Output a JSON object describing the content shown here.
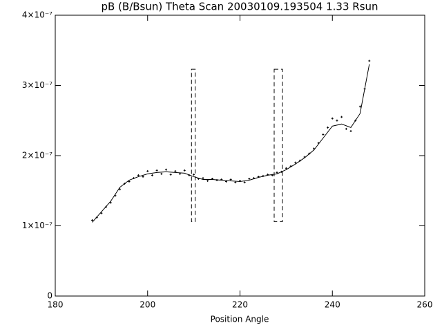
{
  "chart_data": {
    "type": "scatter",
    "title": "pB (B/Bsun) Theta Scan 20030109.193504 1.33 Rsun",
    "x_label": "Position Angle",
    "xlim": [
      180,
      260
    ],
    "xticks": [
      180,
      200,
      220,
      240,
      260
    ],
    "ylim": [
      0,
      4e-07
    ],
    "yticks": [
      0,
      {
        "value": 1e-07,
        "label": "1×10⁻⁷"
      },
      {
        "value": 2e-07,
        "label": "2×10⁻⁷"
      },
      {
        "value": 3e-07,
        "label": "3×10⁻⁷"
      },
      {
        "value": 4e-07,
        "label": "4×10⁻⁷"
      }
    ],
    "color": "#000000",
    "series": [
      {
        "name": "points",
        "color": "#000000",
        "x": [
          188,
          189,
          190,
          191,
          192,
          193,
          194,
          195,
          196,
          197,
          198,
          199,
          200,
          201,
          202,
          203,
          204,
          205,
          206,
          207,
          208,
          209,
          210,
          211,
          212,
          213,
          214,
          215,
          216,
          217,
          218,
          219,
          220,
          221,
          222,
          223,
          224,
          225,
          226,
          227,
          228,
          229,
          230,
          231,
          232,
          233,
          234,
          235,
          236,
          237,
          238,
          239,
          240,
          241,
          242,
          243,
          244,
          245,
          246,
          247,
          248
        ],
        "values": [
          1.08e-07,
          1.12e-07,
          1.18e-07,
          1.27e-07,
          1.33e-07,
          1.43e-07,
          1.52e-07,
          1.6e-07,
          1.63e-07,
          1.68e-07,
          1.72e-07,
          1.7e-07,
          1.78e-07,
          1.72e-07,
          1.79e-07,
          1.74e-07,
          1.8e-07,
          1.73e-07,
          1.78e-07,
          1.74e-07,
          1.79e-07,
          1.72e-07,
          1.73e-07,
          1.67e-07,
          1.68e-07,
          1.64e-07,
          1.67e-07,
          1.65e-07,
          1.66e-07,
          1.63e-07,
          1.66e-07,
          1.62e-07,
          1.64e-07,
          1.62e-07,
          1.67e-07,
          1.68e-07,
          1.7e-07,
          1.71e-07,
          1.73e-07,
          1.72e-07,
          1.76e-07,
          1.77e-07,
          1.82e-07,
          1.85e-07,
          1.9e-07,
          1.93e-07,
          1.98e-07,
          2.03e-07,
          2.1e-07,
          2.18e-07,
          2.3e-07,
          2.4e-07,
          2.53e-07,
          2.5e-07,
          2.55e-07,
          2.38e-07,
          2.35e-07,
          2.5e-07,
          2.7e-07,
          2.95e-07,
          3.35e-07
        ]
      },
      {
        "name": "fit",
        "color": "#000000",
        "style": "line",
        "x": [
          188,
          190,
          192,
          194,
          196,
          198,
          200,
          202,
          204,
          206,
          208,
          210,
          212,
          214,
          216,
          218,
          220,
          222,
          224,
          226,
          228,
          230,
          232,
          234,
          236,
          238,
          240,
          242,
          244,
          246,
          248
        ],
        "values": [
          1.05e-07,
          1.2e-07,
          1.35e-07,
          1.55e-07,
          1.65e-07,
          1.7e-07,
          1.74e-07,
          1.76e-07,
          1.77e-07,
          1.76e-07,
          1.75e-07,
          1.7e-07,
          1.66e-07,
          1.66e-07,
          1.65e-07,
          1.64e-07,
          1.63e-07,
          1.65e-07,
          1.69e-07,
          1.72e-07,
          1.74e-07,
          1.8e-07,
          1.88e-07,
          1.97e-07,
          2.08e-07,
          2.25e-07,
          2.42e-07,
          2.45e-07,
          2.4e-07,
          2.6e-07,
          3.3e-07
        ]
      }
    ],
    "regions": [
      {
        "x": [
          209.5,
          210.3
        ],
        "y": [
          1.06e-07,
          3.23e-07
        ]
      },
      {
        "x": [
          227.4,
          229.2
        ],
        "y": [
          1.06e-07,
          3.23e-07
        ]
      }
    ]
  }
}
